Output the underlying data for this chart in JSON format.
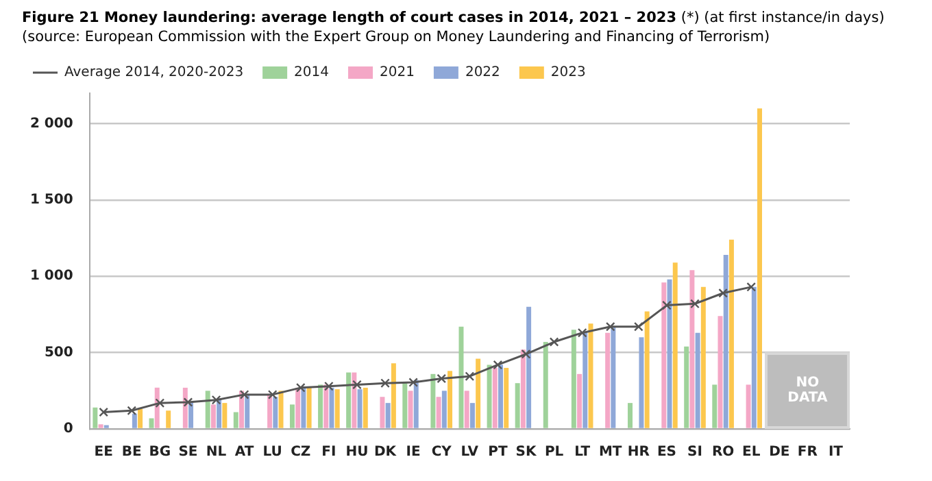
{
  "chart_data": {
    "type": "bar",
    "title": "Figure 21 Money laundering: average length of court cases in 2014, 2021 – 2023",
    "subtitle": "(*) (at first instance/in days) (source: European Commission with the Expert Group on Money Laundering and Financing of Terrorism)",
    "categories": [
      "EE",
      "BE",
      "BG",
      "SE",
      "NL",
      "AT",
      "LU",
      "CZ",
      "FI",
      "HU",
      "DK",
      "IE",
      "CY",
      "LV",
      "PT",
      "SK",
      "PL",
      "LT",
      "MT",
      "HR",
      "ES",
      "SI",
      "RO",
      "EL",
      "DE",
      "FR",
      "IT"
    ],
    "series": [
      {
        "name": "2014",
        "color": "#9fd29a",
        "values": [
          140,
          null,
          70,
          null,
          250,
          110,
          null,
          160,
          290,
          370,
          null,
          300,
          360,
          670,
          420,
          300,
          570,
          650,
          null,
          170,
          null,
          540,
          290,
          null,
          null,
          null,
          null
        ]
      },
      {
        "name": "2021",
        "color": "#f4a7c6",
        "values": [
          30,
          null,
          270,
          270,
          160,
          250,
          230,
          270,
          290,
          370,
          210,
          250,
          210,
          250,
          400,
          520,
          null,
          360,
          630,
          null,
          960,
          1040,
          740,
          290,
          null,
          null,
          null
        ]
      },
      {
        "name": "2022",
        "color": "#8fa8d8",
        "values": [
          25,
          100,
          null,
          180,
          200,
          230,
          210,
          270,
          270,
          260,
          170,
          320,
          250,
          170,
          420,
          800,
          null,
          630,
          670,
          600,
          980,
          630,
          1140,
          930,
          null,
          null,
          null
        ]
      },
      {
        "name": "2023",
        "color": "#fcc74e",
        "values": [
          null,
          130,
          120,
          null,
          170,
          null,
          250,
          270,
          260,
          270,
          430,
          null,
          380,
          460,
          400,
          null,
          null,
          690,
          null,
          770,
          1090,
          930,
          1240,
          2100,
          null,
          null,
          null
        ]
      },
      {
        "name": "Average 2014, 2020-2023",
        "type": "line",
        "color": "#555555",
        "marker": "cross",
        "values": [
          110,
          120,
          170,
          175,
          190,
          225,
          225,
          270,
          280,
          290,
          300,
          305,
          330,
          345,
          420,
          490,
          570,
          630,
          670,
          670,
          810,
          820,
          890,
          930,
          null,
          null,
          null
        ]
      }
    ],
    "ylim": [
      0,
      2200
    ],
    "yticks": [
      0,
      {
        "value": 500,
        "label": "500"
      },
      {
        "value": 1000,
        "label": "1 000"
      },
      {
        "value": 1500,
        "label": "1 500"
      },
      {
        "value": 2000,
        "label": "2 000"
      }
    ],
    "grid": "y",
    "legend": "top left",
    "annotations": [
      "NO DATA"
    ]
  }
}
